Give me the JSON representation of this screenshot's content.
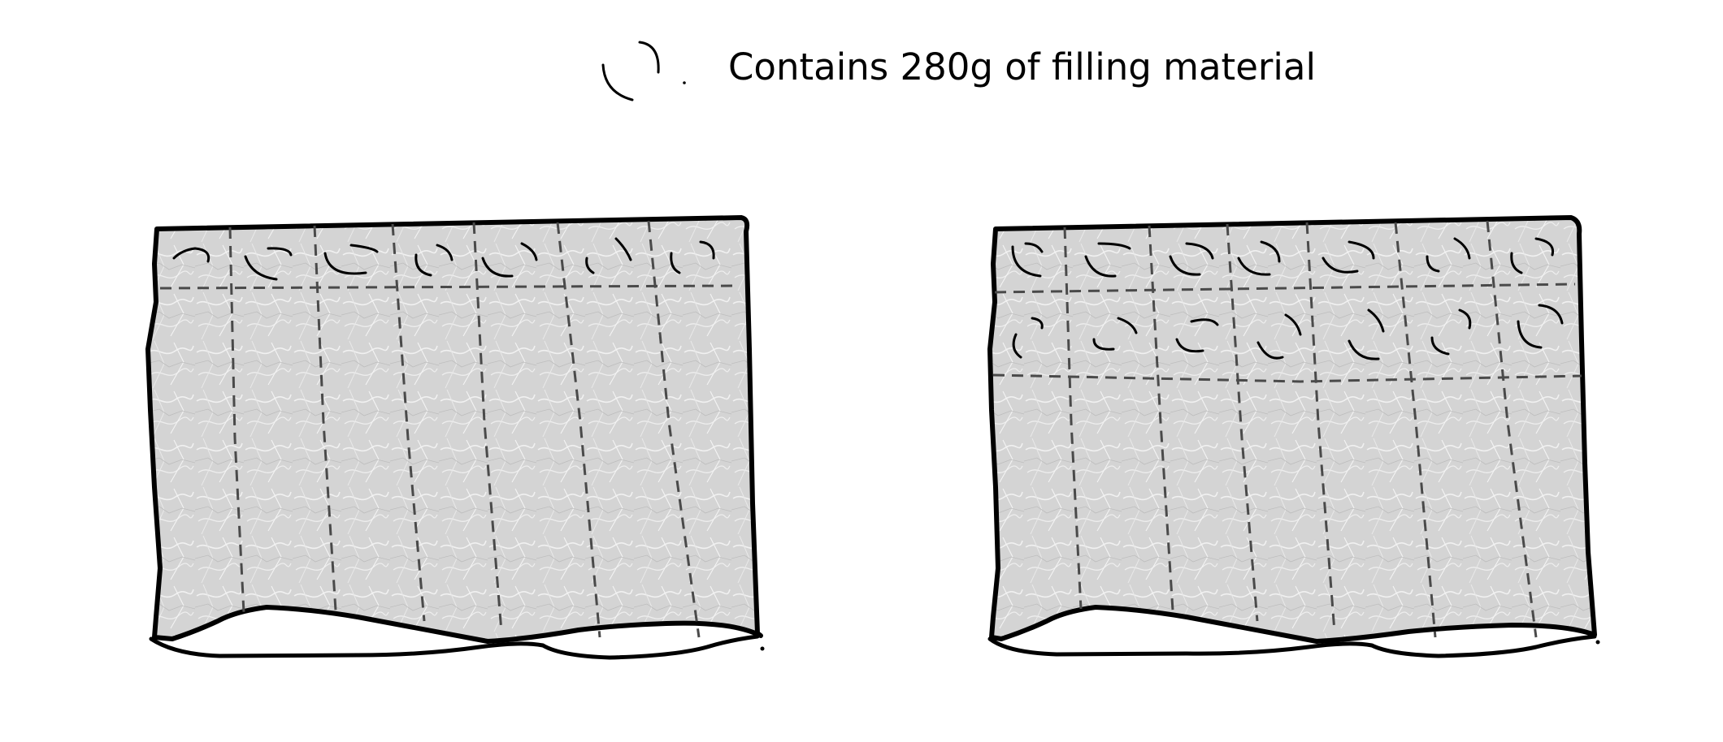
{
  "legend": {
    "symbol_icon": "filling-swirl-icon",
    "text": "Contains 280g of filling material"
  },
  "panels": [
    {
      "name": "single-row-filled-quilt",
      "filled_rows": 1,
      "columns": 7
    },
    {
      "name": "double-row-filled-quilt",
      "filled_rows": 2,
      "columns": 7
    }
  ],
  "colors": {
    "fabric_fill": "#d4d4d4",
    "fabric_texture": "#f2f2f2",
    "outline": "#000000",
    "stitch_line": "#4a4a4a",
    "background": "#ffffff"
  }
}
